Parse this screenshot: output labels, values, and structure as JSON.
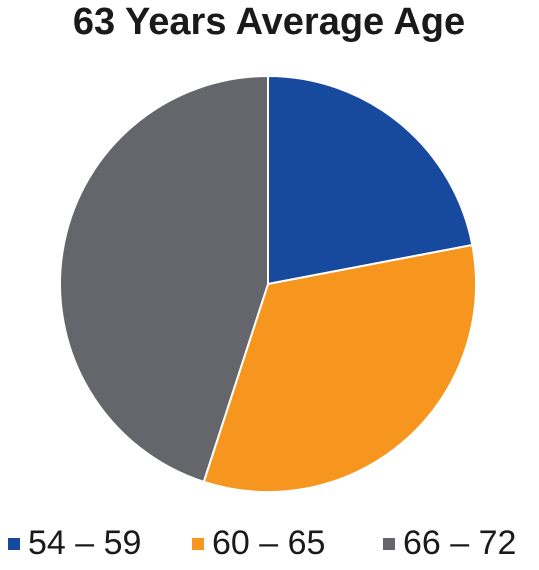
{
  "chart_data": {
    "type": "pie",
    "title": "63 Years Average Age",
    "categories": [
      "54 – 59",
      "60 – 65",
      "66 – 72"
    ],
    "values": [
      22,
      33,
      45
    ],
    "colors": [
      "#174a9e",
      "#f7961f",
      "#65666c"
    ]
  }
}
